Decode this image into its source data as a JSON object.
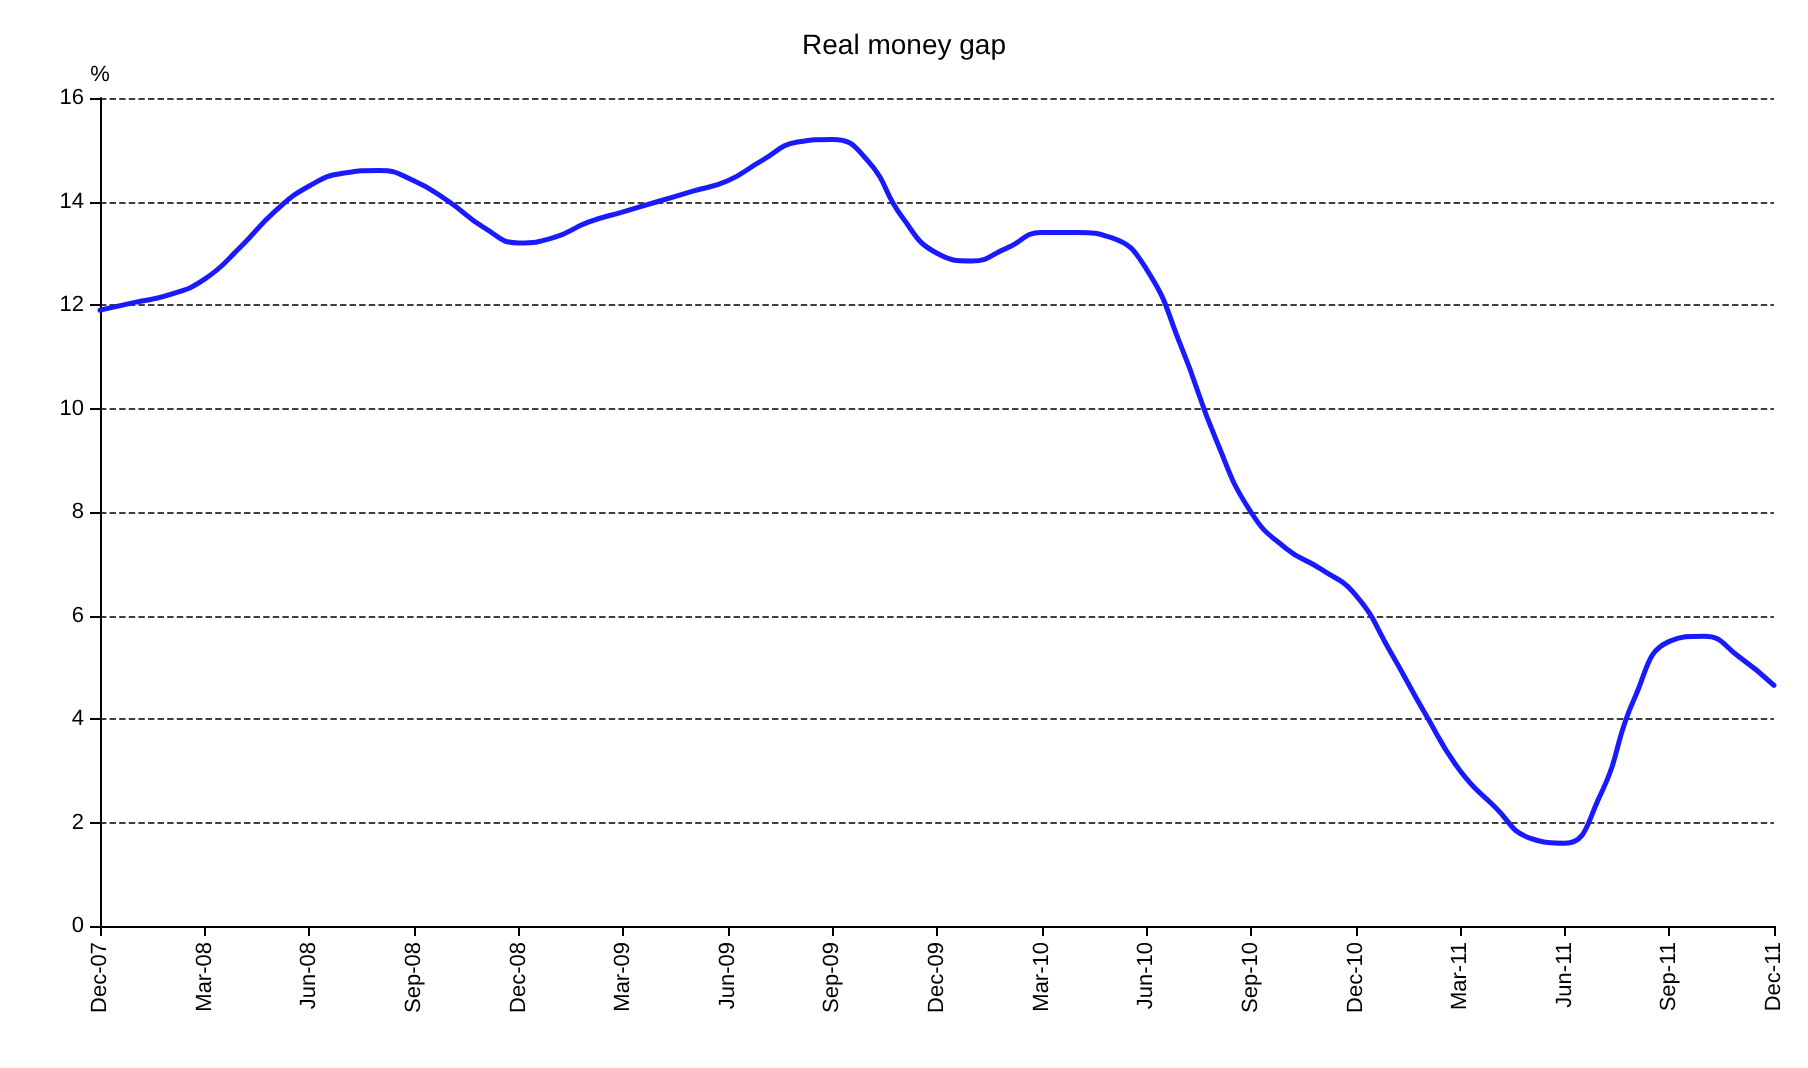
{
  "chart_data": {
    "type": "line",
    "title": "Real money gap",
    "ylabel": "%",
    "categories": [
      "Dec-07",
      null,
      null,
      "Mar-08",
      null,
      null,
      "Jun-08",
      null,
      null,
      "Sep-08",
      null,
      null,
      "Dec-08",
      null,
      null,
      "Mar-09",
      null,
      null,
      "Jun-09",
      null,
      null,
      "Sep-09",
      null,
      null,
      "Dec-09",
      null,
      null,
      "Mar-10",
      null,
      null,
      "Jun-10",
      null,
      null,
      "Sep-10",
      null,
      null,
      "Dec-10",
      null,
      null,
      "Mar-11",
      null,
      null,
      "Jun-11",
      null,
      null,
      "Sep-11",
      null,
      null,
      "Dec-11"
    ],
    "series": [
      {
        "color": "#1a1aff",
        "values": [
          11.9,
          12.05,
          12.2,
          12.5,
          13.1,
          13.8,
          14.3,
          14.55,
          14.6,
          14.4,
          14.0,
          13.5,
          13.2,
          13.3,
          13.6,
          13.8,
          14.0,
          14.2,
          14.4,
          14.8,
          15.15,
          15.2,
          14.8,
          13.7,
          13.0,
          12.85,
          13.1,
          13.4,
          13.4,
          13.3,
          12.7,
          11.2,
          9.4,
          8.0,
          7.3,
          6.9,
          6.4,
          5.3,
          4.1,
          3.0,
          2.3,
          1.7,
          1.6,
          2.5,
          4.4,
          5.5,
          5.6,
          5.2,
          4.65
        ]
      }
    ],
    "ylim": [
      0,
      16
    ],
    "yticks": [
      0,
      2,
      4,
      6,
      8,
      10,
      12,
      14,
      16
    ],
    "grid": "y",
    "marker": "none",
    "line_style": "solid"
  }
}
